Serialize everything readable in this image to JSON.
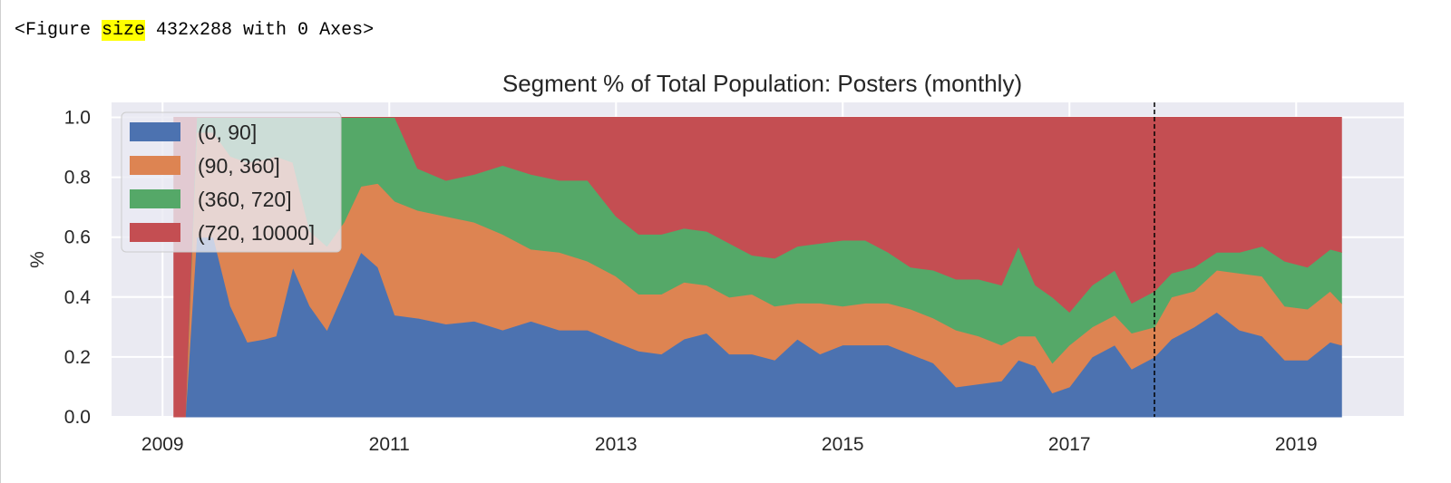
{
  "output": {
    "prefix": "<Figure ",
    "highlight": "size",
    "suffix": " 432x288 with 0 Axes>"
  },
  "colors": {
    "background": "#eaeaf2",
    "grid": "#ffffff",
    "series": [
      "#4c72b0",
      "#dd8452",
      "#55a868",
      "#c44e52"
    ]
  },
  "chart_data": {
    "type": "area",
    "stacked": true,
    "title": "Segment % of Total Population: Posters (monthly)",
    "xlabel": "",
    "ylabel": "%",
    "xlim": [
      2008.55,
      2019.95
    ],
    "ylim": [
      0,
      1.05
    ],
    "x_ticks": [
      2009,
      2011,
      2013,
      2015,
      2017,
      2019
    ],
    "y_ticks": [
      0.0,
      0.2,
      0.4,
      0.6,
      0.8,
      1.0
    ],
    "y_tick_labels": [
      "0.0",
      "0.2",
      "0.4",
      "0.6",
      "0.8",
      "1.0"
    ],
    "grid": true,
    "legend": "top-left",
    "vline_x": 2017.75,
    "x": [
      2009.1,
      2009.2,
      2009.3,
      2009.45,
      2009.6,
      2009.75,
      2009.9,
      2010.0,
      2010.15,
      2010.3,
      2010.45,
      2010.6,
      2010.75,
      2010.9,
      2011.05,
      2011.25,
      2011.5,
      2011.75,
      2012.0,
      2012.25,
      2012.5,
      2012.75,
      2013.0,
      2013.2,
      2013.4,
      2013.6,
      2013.8,
      2014.0,
      2014.2,
      2014.4,
      2014.6,
      2014.8,
      2015.0,
      2015.2,
      2015.4,
      2015.6,
      2015.8,
      2016.0,
      2016.2,
      2016.4,
      2016.55,
      2016.7,
      2016.85,
      2017.0,
      2017.2,
      2017.4,
      2017.55,
      2017.75,
      2017.9,
      2018.1,
      2018.3,
      2018.5,
      2018.7,
      2018.9,
      2019.1,
      2019.3,
      2019.4
    ],
    "series": [
      {
        "name": "(0, 90]",
        "values": [
          0.0,
          0.0,
          0.6,
          0.6,
          0.37,
          0.25,
          0.26,
          0.27,
          0.5,
          0.37,
          0.29,
          0.42,
          0.55,
          0.5,
          0.34,
          0.33,
          0.31,
          0.32,
          0.29,
          0.32,
          0.29,
          0.29,
          0.25,
          0.22,
          0.21,
          0.26,
          0.28,
          0.21,
          0.21,
          0.19,
          0.26,
          0.21,
          0.24,
          0.24,
          0.24,
          0.21,
          0.18,
          0.1,
          0.11,
          0.12,
          0.19,
          0.17,
          0.08,
          0.1,
          0.2,
          0.24,
          0.16,
          0.2,
          0.26,
          0.3,
          0.35,
          0.29,
          0.27,
          0.19,
          0.19,
          0.25,
          0.24
        ]
      },
      {
        "name": "(90, 360]",
        "values": [
          0.0,
          0.0,
          0.35,
          0.35,
          0.5,
          0.6,
          0.6,
          0.6,
          0.35,
          0.25,
          0.28,
          0.23,
          0.22,
          0.28,
          0.38,
          0.36,
          0.36,
          0.33,
          0.32,
          0.24,
          0.26,
          0.23,
          0.22,
          0.19,
          0.2,
          0.19,
          0.16,
          0.19,
          0.2,
          0.18,
          0.12,
          0.17,
          0.13,
          0.14,
          0.14,
          0.15,
          0.15,
          0.19,
          0.16,
          0.12,
          0.08,
          0.1,
          0.1,
          0.14,
          0.1,
          0.1,
          0.12,
          0.1,
          0.14,
          0.12,
          0.14,
          0.19,
          0.2,
          0.18,
          0.17,
          0.17,
          0.14
        ]
      },
      {
        "name": "(360, 720]",
        "values": [
          0.0,
          0.0,
          0.05,
          0.05,
          0.13,
          0.15,
          0.14,
          0.13,
          0.15,
          0.38,
          0.43,
          0.35,
          0.23,
          0.22,
          0.28,
          0.14,
          0.12,
          0.16,
          0.23,
          0.25,
          0.24,
          0.27,
          0.2,
          0.2,
          0.2,
          0.18,
          0.18,
          0.18,
          0.13,
          0.16,
          0.19,
          0.2,
          0.22,
          0.21,
          0.17,
          0.14,
          0.16,
          0.17,
          0.19,
          0.2,
          0.3,
          0.17,
          0.22,
          0.11,
          0.14,
          0.15,
          0.1,
          0.12,
          0.08,
          0.08,
          0.06,
          0.07,
          0.1,
          0.15,
          0.14,
          0.14,
          0.17
        ]
      },
      {
        "name": "(720, 10000]",
        "values": [
          1.0,
          1.0,
          0.0,
          0.0,
          0.0,
          0.0,
          0.0,
          0.0,
          0.0,
          0.0,
          0.0,
          0.0,
          0.0,
          0.0,
          0.0,
          0.17,
          0.21,
          0.19,
          0.16,
          0.19,
          0.21,
          0.21,
          0.33,
          0.39,
          0.39,
          0.37,
          0.38,
          0.42,
          0.46,
          0.47,
          0.43,
          0.42,
          0.41,
          0.41,
          0.45,
          0.5,
          0.51,
          0.54,
          0.54,
          0.56,
          0.43,
          0.56,
          0.6,
          0.65,
          0.56,
          0.51,
          0.62,
          0.58,
          0.52,
          0.5,
          0.45,
          0.45,
          0.43,
          0.48,
          0.5,
          0.44,
          0.45
        ]
      }
    ]
  }
}
